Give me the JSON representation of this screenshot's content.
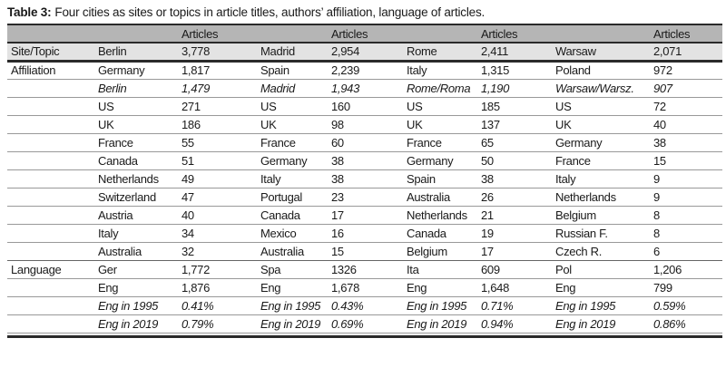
{
  "caption": {
    "label": "Table 3:",
    "text": "Four cities as sites or topics in article titles, authors’ affiliation, language of articles."
  },
  "header": {
    "articles_label": "Articles"
  },
  "colors": {
    "header_bg": "#b5b5b5",
    "subheader_bg": "#e3e3e3",
    "rule_dark": "#2a2a2a",
    "rule_light": "#999999"
  },
  "sections": [
    {
      "label": "Site/Topic",
      "rows": [
        {
          "italic": false,
          "cells": [
            "Berlin",
            "3,778",
            "Madrid",
            "2,954",
            "Rome",
            "2,411",
            "Warsaw",
            "2,071"
          ]
        }
      ]
    },
    {
      "label": "Affiliation",
      "rows": [
        {
          "italic": false,
          "cells": [
            "Germany",
            "1,817",
            "Spain",
            "2,239",
            "Italy",
            "1,315",
            "Poland",
            "972"
          ]
        },
        {
          "italic": true,
          "cells": [
            "Berlin",
            "1,479",
            "Madrid",
            "1,943",
            "Rome/Roma",
            "1,190",
            "Warsaw/Warsz.",
            "907"
          ]
        },
        {
          "italic": false,
          "cells": [
            "US",
            "271",
            "US",
            "160",
            "US",
            "185",
            "US",
            "72"
          ]
        },
        {
          "italic": false,
          "cells": [
            "UK",
            "186",
            "UK",
            "98",
            "UK",
            "137",
            "UK",
            "40"
          ]
        },
        {
          "italic": false,
          "cells": [
            "France",
            "55",
            "France",
            "60",
            "France",
            "65",
            "Germany",
            "38"
          ]
        },
        {
          "italic": false,
          "cells": [
            "Canada",
            "51",
            "Germany",
            "38",
            "Germany",
            "50",
            "France",
            "15"
          ]
        },
        {
          "italic": false,
          "cells": [
            "Netherlands",
            "49",
            "Italy",
            "38",
            "Spain",
            "38",
            "Italy",
            "9"
          ]
        },
        {
          "italic": false,
          "cells": [
            "Switzerland",
            "47",
            "Portugal",
            "23",
            "Australia",
            "26",
            "Netherlands",
            "9"
          ]
        },
        {
          "italic": false,
          "cells": [
            "Austria",
            "40",
            "Canada",
            "17",
            "Netherlands",
            "21",
            "Belgium",
            "8"
          ]
        },
        {
          "italic": false,
          "cells": [
            "Italy",
            "34",
            "Mexico",
            "16",
            "Canada",
            "19",
            "Russian F.",
            "8"
          ]
        },
        {
          "italic": false,
          "cells": [
            "Australia",
            "32",
            "Australia",
            "15",
            "Belgium",
            "17",
            "Czech R.",
            "6"
          ]
        }
      ]
    },
    {
      "label": "Language",
      "rows": [
        {
          "italic": false,
          "cells": [
            "Ger",
            "1,772",
            "Spa",
            "1326",
            "Ita",
            "609",
            "Pol",
            "1,206"
          ]
        },
        {
          "italic": false,
          "cells": [
            "Eng",
            "1,876",
            "Eng",
            "1,678",
            "Eng",
            "1,648",
            "Eng",
            "799"
          ]
        },
        {
          "italic": true,
          "cells": [
            "Eng in 1995",
            "0.41%",
            "Eng in 1995",
            "0.43%",
            "Eng in 1995",
            "0.71%",
            "Eng in 1995",
            "0.59%"
          ]
        },
        {
          "italic": true,
          "cells": [
            "Eng in 2019",
            "0.79%",
            "Eng in 2019",
            "0.69%",
            "Eng in 2019",
            "0.94%",
            "Eng in 2019",
            "0.86%"
          ]
        }
      ]
    }
  ]
}
